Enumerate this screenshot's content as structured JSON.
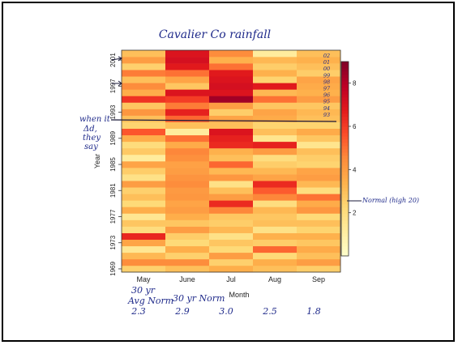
{
  "chart_data": {
    "type": "heatmap",
    "title": "Cavalier Co rainfall",
    "xlabel": "Month",
    "ylabel": "Year",
    "categories": [
      "May",
      "June",
      "Jul",
      "Aug",
      "Sep"
    ],
    "year_range": [
      1969,
      2002
    ],
    "y_ticks": [
      "1969",
      "1973",
      "1977",
      "1981",
      "1985",
      "1989",
      "1993",
      "1997",
      "2001"
    ],
    "colorbar": {
      "range": [
        0,
        9
      ],
      "ticks": [
        "2",
        "4",
        "6",
        "8"
      ],
      "colors": [
        "#ffffcc",
        "#ffeda0",
        "#fed976",
        "#feb24c",
        "#fd8d3c",
        "#fc4e2a",
        "#e31a1c",
        "#bd0026",
        "#800026"
      ]
    },
    "values_by_month": {
      "May": [
        2.5,
        4.5,
        3.2,
        1.5,
        3.8,
        6.5,
        2.0,
        2.8,
        1.5,
        3.5,
        2.2,
        3.0,
        2.5,
        4.0,
        1.8,
        2.6,
        3.8,
        1.2,
        2.7,
        2.1,
        3.5,
        5.5,
        2.4,
        3.0,
        4.2,
        2.8,
        6.2,
        3.5,
        4.5,
        3.0,
        4.8,
        2.5,
        4.0,
        3.0
      ],
      "June": [
        3.0,
        4.5,
        2.5,
        3.5,
        2.2,
        2.6,
        4.0,
        2.8,
        3.5,
        4.0,
        3.8,
        4.2,
        4.1,
        4.5,
        4.3,
        4.0,
        3.9,
        4.4,
        4.6,
        3.6,
        5.0,
        1.2,
        3.0,
        5.2,
        6.6,
        4.8,
        6.0,
        7.0,
        2.8,
        3.8,
        5.0,
        6.8,
        7.2,
        7.0
      ],
      "Jul": [
        3.5,
        2.5,
        4.0,
        2.2,
        2.8,
        1.8,
        3.2,
        2.6,
        2.8,
        4.6,
        6.4,
        4.0,
        3.0,
        1.8,
        4.2,
        3.2,
        5.2,
        3.0,
        3.4,
        6.4,
        6.6,
        7.0,
        3.0,
        3.8,
        2.6,
        4.0,
        8.4,
        7.0,
        7.2,
        7.0,
        6.8,
        5.0,
        3.4,
        4.5
      ],
      "Aug": [
        3.0,
        3.5,
        2.2,
        5.2,
        2.6,
        3.4,
        1.8,
        3.0,
        2.8,
        3.2,
        2.0,
        4.6,
        5.4,
        6.4,
        3.8,
        3.2,
        2.6,
        2.0,
        4.0,
        6.6,
        1.6,
        3.0,
        2.4,
        3.6,
        3.8,
        2.8,
        5.0,
        3.2,
        6.8,
        2.4,
        3.4,
        2.6,
        3.2,
        1.2
      ],
      "Sep": [
        2.6,
        4.0,
        3.0,
        3.6,
        2.8,
        3.4,
        2.4,
        3.0,
        2.2,
        4.2,
        3.6,
        5.0,
        2.0,
        3.2,
        4.0,
        3.8,
        2.4,
        2.6,
        3.0,
        1.6,
        2.8,
        3.6,
        2.4,
        3.0,
        3.2,
        2.8,
        4.0,
        3.4,
        3.6,
        3.8,
        2.6,
        3.0,
        3.4,
        3.0
      ]
    },
    "annotations": {
      "row_labels": [
        "02",
        "01",
        "00",
        "99",
        "98",
        "97",
        "96",
        "95",
        "94",
        "93"
      ],
      "left_note": [
        "when it",
        "Δd,",
        "they",
        "say"
      ],
      "normal_note": "Normal (high 20)",
      "avg_heading": [
        "30 yr",
        "Avg Norm"
      ],
      "avg_heading_june": "30 yr Norm",
      "averages": [
        "2.3",
        "2.9",
        "3.0",
        "2.5",
        "1.8"
      ]
    }
  }
}
